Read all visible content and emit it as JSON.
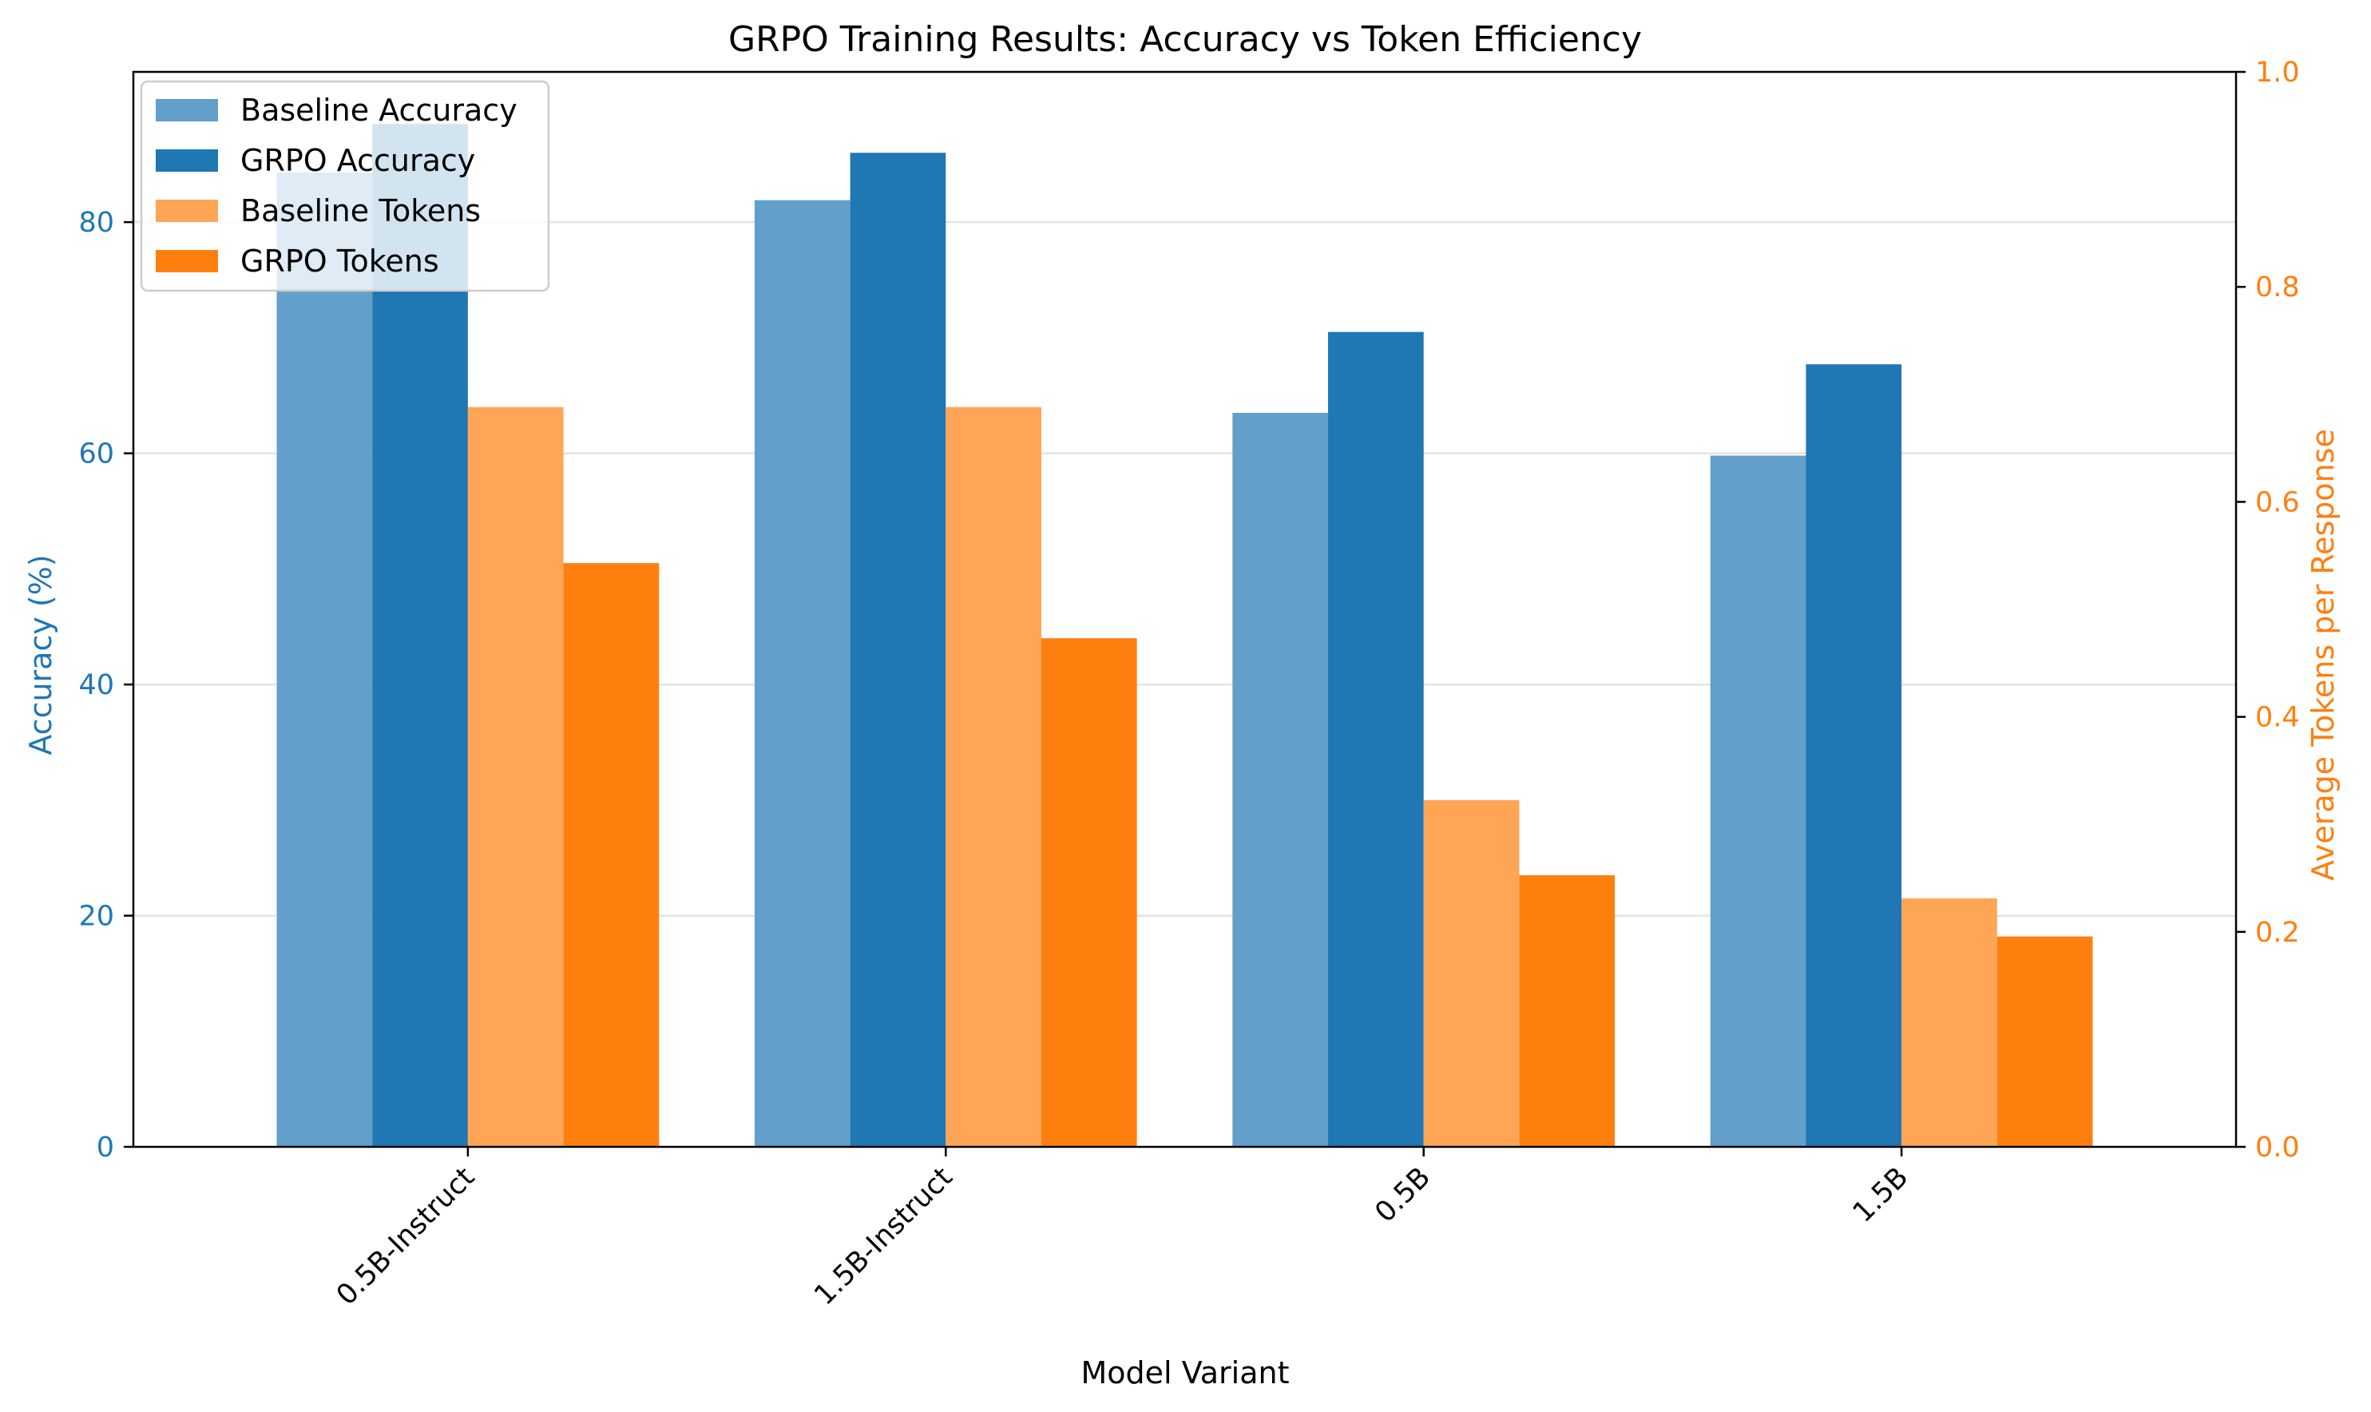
{
  "chart_data": {
    "type": "bar",
    "title": "GRPO Training Results: Accuracy vs Token Efficiency",
    "xlabel": "Model Variant",
    "ylabel": "Accuracy (%)",
    "ylabel_right": "Average Tokens per Response",
    "categories": [
      "0.5B-Instruct",
      "1.5B-Instruct",
      "0.5B",
      "1.5B"
    ],
    "ylim": [
      0,
      93
    ],
    "ylim_right": [
      0,
      1.0
    ],
    "yticks": [
      0,
      20,
      40,
      60,
      80
    ],
    "yticks_right": [
      0.0,
      0.2,
      0.4,
      0.6,
      0.8,
      1.0
    ],
    "grid": "horizontal",
    "legend_position": "upper-left",
    "series": [
      {
        "name": "Baseline Accuracy",
        "axis": "left",
        "color": "#629fca",
        "values": [
          84.3,
          81.9,
          63.5,
          59.8
        ]
      },
      {
        "name": "GRPO Accuracy",
        "axis": "left",
        "color": "#1f77b4",
        "values": [
          88.5,
          86.0,
          70.5,
          67.7
        ]
      },
      {
        "name": "Baseline Tokens",
        "axis": "left",
        "color": "#ffa556",
        "values": [
          64.0,
          64.0,
          30.0,
          21.5
        ]
      },
      {
        "name": "GRPO Tokens",
        "axis": "left",
        "color": "#ff7f0e",
        "values": [
          50.5,
          44.0,
          23.5,
          18.2
        ]
      }
    ],
    "left_axis_color": "#1f77b4",
    "right_axis_color": "#ff7f0e"
  }
}
